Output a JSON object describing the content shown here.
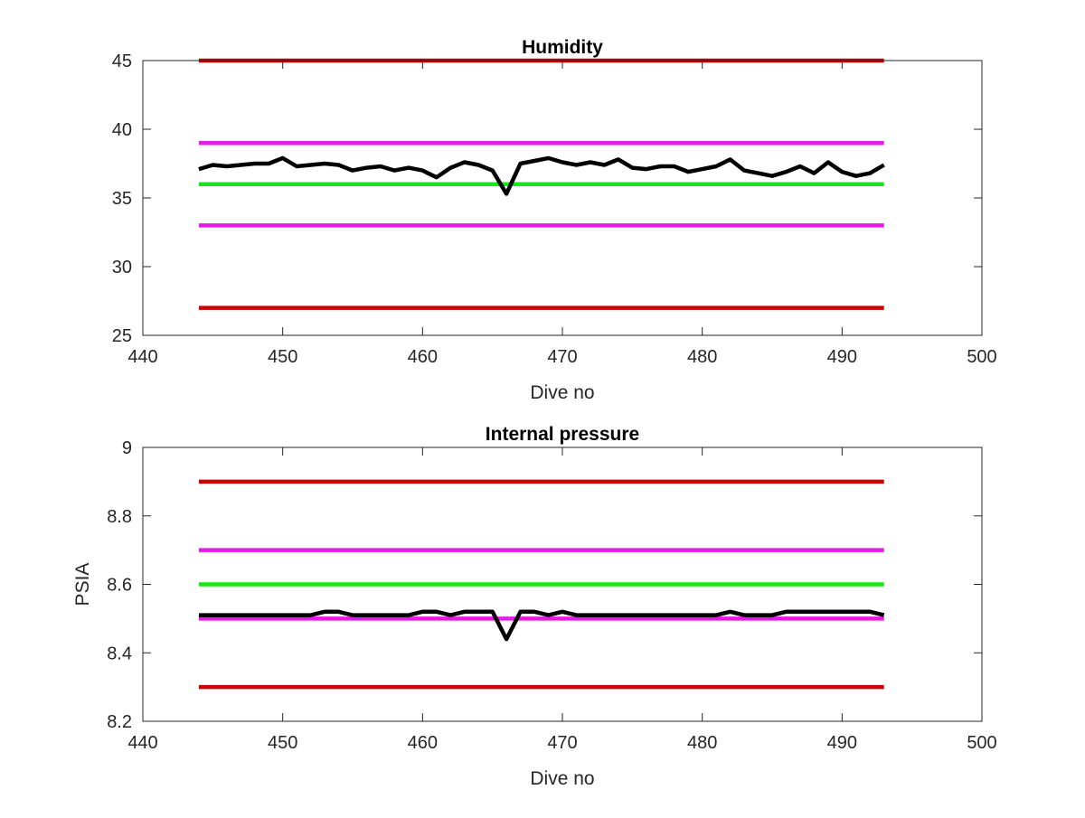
{
  "chart_data": [
    {
      "type": "line",
      "title": "Humidity",
      "xlabel": "Dive no",
      "ylabel": "",
      "xlim": [
        440,
        500
      ],
      "ylim": [
        25,
        45
      ],
      "xticks": [
        440,
        450,
        460,
        470,
        480,
        490,
        500
      ],
      "yticks": [
        25,
        30,
        35,
        40,
        45
      ],
      "xtick_labels": [
        "440",
        "450",
        "460",
        "470",
        "480",
        "490",
        "500"
      ],
      "ytick_labels": [
        "25",
        "30",
        "35",
        "40",
        "45"
      ],
      "grid": false,
      "legend": "none",
      "series": [
        {
          "color": "#cc0000",
          "x": [
            444,
            493
          ],
          "y": [
            45,
            45
          ]
        },
        {
          "color": "#e619e6",
          "x": [
            444,
            493
          ],
          "y": [
            39,
            39
          ]
        },
        {
          "color": "#19e619",
          "x": [
            444,
            493
          ],
          "y": [
            36,
            36
          ]
        },
        {
          "color": "#e619e6",
          "x": [
            444,
            493
          ],
          "y": [
            33,
            33
          ]
        },
        {
          "color": "#cc0000",
          "x": [
            444,
            493
          ],
          "y": [
            27,
            27
          ]
        },
        {
          "color": "#000000",
          "x": [
            444,
            445,
            446,
            447,
            448,
            449,
            450,
            451,
            452,
            453,
            454,
            455,
            456,
            457,
            458,
            459,
            460,
            461,
            462,
            463,
            464,
            465,
            466,
            467,
            468,
            469,
            470,
            471,
            472,
            473,
            474,
            475,
            476,
            477,
            478,
            479,
            480,
            481,
            482,
            483,
            484,
            485,
            486,
            487,
            488,
            489,
            490,
            491,
            492,
            493
          ],
          "y": [
            37.1,
            37.4,
            37.3,
            37.4,
            37.5,
            37.5,
            37.9,
            37.3,
            37.4,
            37.5,
            37.4,
            37.0,
            37.2,
            37.3,
            37.0,
            37.2,
            37.0,
            36.5,
            37.2,
            37.6,
            37.4,
            37.0,
            35.3,
            37.5,
            37.7,
            37.9,
            37.6,
            37.4,
            37.6,
            37.4,
            37.8,
            37.2,
            37.1,
            37.3,
            37.3,
            36.9,
            37.1,
            37.3,
            37.8,
            37.0,
            36.8,
            36.6,
            36.9,
            37.3,
            36.8,
            37.6,
            36.9,
            36.6,
            36.8,
            37.4
          ]
        }
      ]
    },
    {
      "type": "line",
      "title": "Internal pressure",
      "xlabel": "Dive no",
      "ylabel": "PSIA",
      "xlim": [
        440,
        500
      ],
      "ylim": [
        8.2,
        9.0
      ],
      "xticks": [
        440,
        450,
        460,
        470,
        480,
        490,
        500
      ],
      "yticks": [
        8.2,
        8.4,
        8.6,
        8.8,
        9.0
      ],
      "xtick_labels": [
        "440",
        "450",
        "460",
        "470",
        "480",
        "490",
        "500"
      ],
      "ytick_labels": [
        "8.2",
        "8.4",
        "8.6",
        "8.8",
        "9"
      ],
      "grid": false,
      "legend": "none",
      "series": [
        {
          "color": "#cc0000",
          "x": [
            444,
            493
          ],
          "y": [
            8.9,
            8.9
          ]
        },
        {
          "color": "#e619e6",
          "x": [
            444,
            493
          ],
          "y": [
            8.7,
            8.7
          ]
        },
        {
          "color": "#19e619",
          "x": [
            444,
            493
          ],
          "y": [
            8.6,
            8.6
          ]
        },
        {
          "color": "#e619e6",
          "x": [
            444,
            493
          ],
          "y": [
            8.5,
            8.5
          ]
        },
        {
          "color": "#cc0000",
          "x": [
            444,
            493
          ],
          "y": [
            8.3,
            8.3
          ]
        },
        {
          "color": "#000000",
          "x": [
            444,
            445,
            446,
            447,
            448,
            449,
            450,
            451,
            452,
            453,
            454,
            455,
            456,
            457,
            458,
            459,
            460,
            461,
            462,
            463,
            464,
            465,
            466,
            467,
            468,
            469,
            470,
            471,
            472,
            473,
            474,
            475,
            476,
            477,
            478,
            479,
            480,
            481,
            482,
            483,
            484,
            485,
            486,
            487,
            488,
            489,
            490,
            491,
            492,
            493
          ],
          "y": [
            8.51,
            8.51,
            8.51,
            8.51,
            8.51,
            8.51,
            8.51,
            8.51,
            8.51,
            8.52,
            8.52,
            8.51,
            8.51,
            8.51,
            8.51,
            8.51,
            8.52,
            8.52,
            8.51,
            8.52,
            8.52,
            8.52,
            8.44,
            8.52,
            8.52,
            8.51,
            8.52,
            8.51,
            8.51,
            8.51,
            8.51,
            8.51,
            8.51,
            8.51,
            8.51,
            8.51,
            8.51,
            8.51,
            8.52,
            8.51,
            8.51,
            8.51,
            8.52,
            8.52,
            8.52,
            8.52,
            8.52,
            8.52,
            8.52,
            8.51
          ]
        }
      ]
    }
  ]
}
